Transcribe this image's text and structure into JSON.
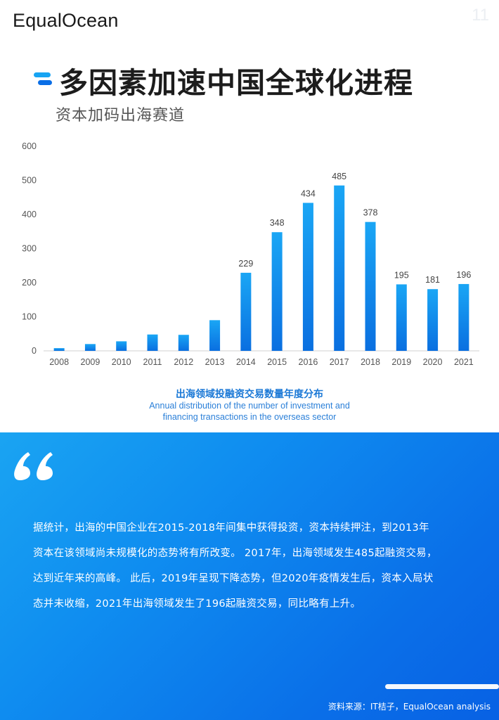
{
  "header": {
    "logo_text": "EqualOcean",
    "page_number": "11",
    "title": "多因素加速中国全球化进程",
    "subtitle": "资本加码出海赛道"
  },
  "chart_data": {
    "type": "bar",
    "categories": [
      "2008",
      "2009",
      "2010",
      "2011",
      "2012",
      "2013",
      "2014",
      "2015",
      "2016",
      "2017",
      "2018",
      "2019",
      "2020",
      "2021"
    ],
    "values": [
      8,
      20,
      28,
      48,
      47,
      90,
      229,
      348,
      434,
      485,
      378,
      195,
      181,
      196
    ],
    "data_labels": {
      "2014": "229",
      "2015": "348",
      "2016": "434",
      "2017": "485",
      "2018": "378",
      "2019": "195",
      "2020": "181",
      "2021": "196"
    },
    "y_ticks": [
      0,
      100,
      200,
      300,
      400,
      500,
      600
    ],
    "ylim": [
      0,
      600
    ],
    "grid": false,
    "legend": "none",
    "bar_color_top": "#1aa6f5",
    "bar_color_bottom": "#0a6fe0"
  },
  "caption": {
    "zh": "出海领域投融资交易数量年度分布",
    "en_line1": "Annual distribution of the number of investment and",
    "en_line2": "financing transactions in the overseas sector"
  },
  "panel": {
    "quote_icon": "quote-icon",
    "lines": [
      "据统计，出海的中国企业在2015-2018年间集中获得投资，资本持续押注，到2013年",
      "资本在该领域尚未规模化的态势将有所改变。 2017年，出海领域发生485起融资交易，",
      "达到近年来的高峰。 此后，2019年呈现下降态势，但2020年疫情发生后，资本入局状",
      "态并未收缩，2021年出海领域发生了196起融资交易，同比略有上升。"
    ],
    "source": "资料来源：IT桔子，EqualOcean analysis"
  }
}
